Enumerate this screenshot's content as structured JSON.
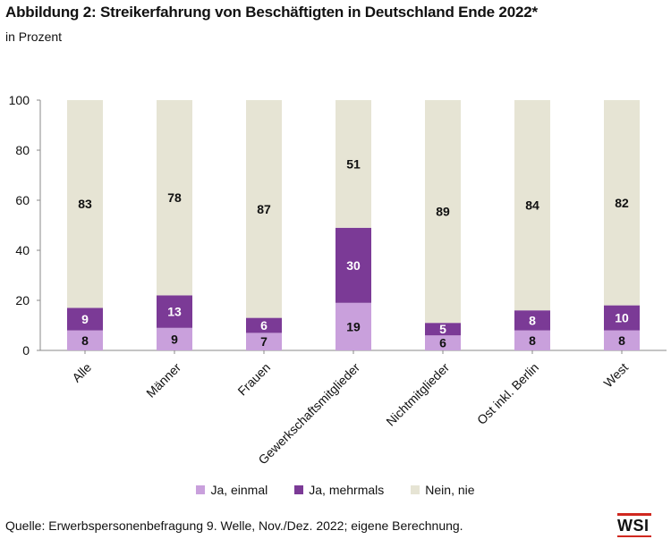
{
  "title": "Abbildung 2: Streikerfahrung von Beschäftigten in Deutschland Ende 2022*",
  "subtitle": "in Prozent",
  "source": "Quelle: Erwerbspersonenbefragung 9. Welle, Nov./Dez. 2022; eigene Berechnung.",
  "logo_text": "WSI",
  "colors": {
    "ja_einmal": "#c9a0dc",
    "ja_mehrmals": "#7b3a96",
    "nein_nie": "#e6e4d4",
    "logo_accent": "#d0281f"
  },
  "chart_data": {
    "type": "bar",
    "stacked": true,
    "categories": [
      "Alle",
      "Männer",
      "Frauen",
      "Gewerkschaftsmitglieder",
      "Nichtmitglieder",
      "Ost inkl. Berlin",
      "West"
    ],
    "series": [
      {
        "name": "Ja, einmal",
        "values": [
          8,
          9,
          7,
          19,
          6,
          8,
          8
        ]
      },
      {
        "name": "Ja, mehrmals",
        "values": [
          9,
          13,
          6,
          30,
          5,
          8,
          10
        ]
      },
      {
        "name": "Nein, nie",
        "values": [
          83,
          78,
          87,
          51,
          89,
          84,
          82
        ]
      }
    ],
    "ylim": [
      0,
      100
    ],
    "yticks": [
      0,
      20,
      40,
      60,
      80,
      100
    ],
    "legend_position": "bottom",
    "grid": false
  }
}
